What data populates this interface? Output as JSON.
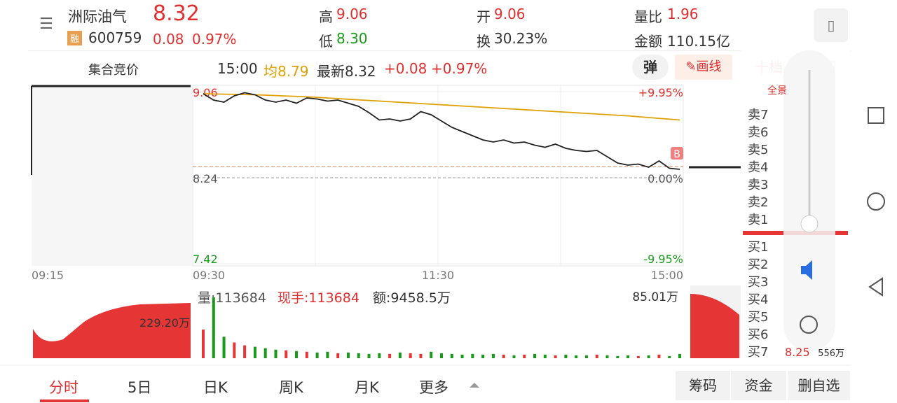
{
  "header": {
    "name": "洲际油气",
    "badge": "融",
    "code": "600759",
    "price": "8.32",
    "change": "0.08",
    "change_pct": "0.97%",
    "stats": [
      {
        "label": "高",
        "value": "9.06"
      },
      {
        "label": "低",
        "value": "8.30"
      },
      {
        "label": "开",
        "value": "9.06"
      },
      {
        "label": "换",
        "value": "30.23%"
      },
      {
        "label": "量比",
        "value": "1.96"
      },
      {
        "label": "金额",
        "value": "110.15亿"
      }
    ]
  },
  "toolbar": {
    "auction": "集合竞价",
    "time": "15:00",
    "avg": "均8.79",
    "latest": "最新8.32",
    "change": "+0.08",
    "change_pct": "+0.97%",
    "popup": "弹",
    "draw": "画线",
    "tabs": [
      "十档",
      "明细"
    ]
  },
  "chart": {
    "ylim": [
      7.42,
      9.06
    ],
    "yticks": [
      9.06,
      8.24,
      7.42
    ],
    "pct_labels": [
      "+9.95%",
      "0.00%",
      "-9.95%"
    ],
    "times": [
      "09:15",
      "09:30",
      "11:30",
      "15:00"
    ],
    "price": [
      9.04,
      8.98,
      8.96,
      9.02,
      9.05,
      9.03,
      8.98,
      8.96,
      8.98,
      8.95,
      9.0,
      8.99,
      8.97,
      8.98,
      8.95,
      8.92,
      8.86,
      8.79,
      8.8,
      8.78,
      8.8,
      8.87,
      8.84,
      8.78,
      8.72,
      8.68,
      8.64,
      8.6,
      8.58,
      8.6,
      8.57,
      8.58,
      8.55,
      8.53,
      8.56,
      8.52,
      8.5,
      8.49,
      8.5,
      8.44,
      8.38,
      8.36,
      8.37,
      8.34,
      8.4,
      8.33,
      8.32
    ],
    "avg": [
      9.04,
      9.03,
      9.01,
      8.98,
      8.95,
      8.92,
      8.89,
      8.86,
      8.83,
      8.79
    ],
    "vol_max": {
      "value": 85.01,
      "label": "85.01万"
    },
    "volume": [
      40,
      85.01,
      30,
      22,
      18,
      16,
      14,
      12,
      11,
      10,
      9,
      8,
      9,
      7,
      8,
      7,
      6,
      7,
      6,
      8,
      7,
      6,
      9,
      7,
      6,
      5,
      6,
      5,
      6,
      5,
      4,
      5,
      6,
      5,
      4,
      5,
      4,
      4,
      5,
      4,
      3,
      4,
      3,
      4,
      5,
      3,
      6
    ],
    "vol_label": "量:113684",
    "hand": "现手:113684",
    "amount": "额:9458.5万",
    "auction_vol": "229.20万",
    "marker": "B"
  },
  "orderbook": {
    "header": "全景",
    "sells": [
      "卖7",
      "卖6",
      "卖5",
      "卖4",
      "卖3",
      "卖2",
      "卖1"
    ],
    "buys": [
      "买1",
      "买2",
      "买3",
      "买4",
      "买5",
      "买6",
      "买7"
    ],
    "buy7_price": "8.25",
    "buy7_vol": "556万"
  },
  "tabs": [
    "分时",
    "5日",
    "日K",
    "周K",
    "月K",
    "更多"
  ],
  "actions": [
    "筹码",
    "资金",
    "删自选"
  ]
}
